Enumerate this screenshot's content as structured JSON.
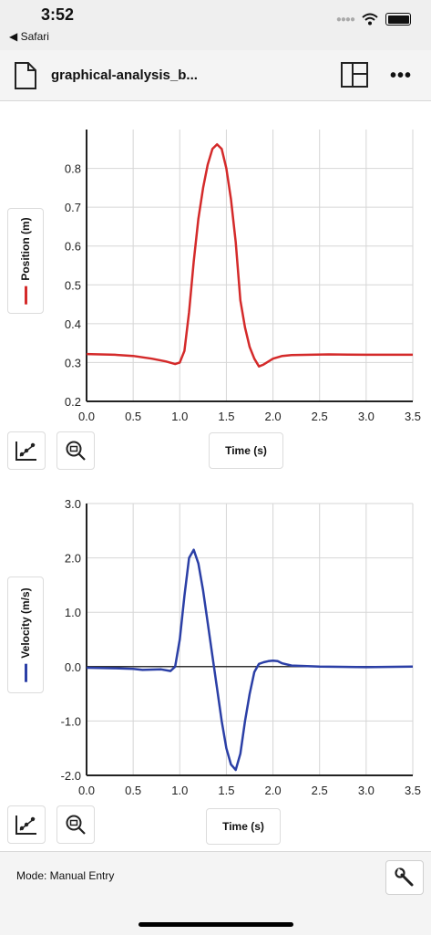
{
  "status": {
    "time": "3:52",
    "back_app": "◀ Safari"
  },
  "toolbar": {
    "title": "graphical-analysis_b...",
    "more": "•••"
  },
  "position_graph": {
    "ylabel": "Position (m)",
    "xlabel_button": "Time (s)",
    "color": "#d42a2a"
  },
  "velocity_graph": {
    "ylabel": "Velocity (m/s)",
    "xlabel_button": "Time (s)",
    "color": "#2b3fa6"
  },
  "footer": {
    "mode": "Mode: Manual Entry"
  },
  "chart_data": [
    {
      "type": "line",
      "xlabel": "Time (s)",
      "ylabel": "Position (m)",
      "xlim": [
        0,
        3.5
      ],
      "ylim": [
        0.2,
        0.9
      ],
      "xticks": [
        "0.0",
        "0.5",
        "1.0",
        "1.5",
        "2.0",
        "2.5",
        "3.0",
        "3.5"
      ],
      "yticks": [
        "0.2",
        "0.3",
        "0.4",
        "0.5",
        "0.6",
        "0.7",
        "0.8"
      ],
      "grid": true,
      "series": [
        {
          "x": [
            0,
            0.3,
            0.5,
            0.7,
            0.85,
            0.95,
            1.0,
            1.05,
            1.1,
            1.15,
            1.2,
            1.25,
            1.3,
            1.35,
            1.4,
            1.45,
            1.5,
            1.55,
            1.6,
            1.65,
            1.7,
            1.75,
            1.8,
            1.85,
            1.9,
            2.0,
            2.1,
            2.2,
            2.4,
            2.6,
            3.0,
            3.5
          ],
          "y": [
            0.322,
            0.32,
            0.317,
            0.31,
            0.303,
            0.296,
            0.3,
            0.33,
            0.43,
            0.56,
            0.67,
            0.75,
            0.81,
            0.85,
            0.862,
            0.85,
            0.8,
            0.72,
            0.61,
            0.46,
            0.39,
            0.34,
            0.31,
            0.29,
            0.295,
            0.31,
            0.317,
            0.319,
            0.32,
            0.321,
            0.32,
            0.32
          ]
        }
      ]
    },
    {
      "type": "line",
      "xlabel": "Time (s)",
      "ylabel": "Velocity (m/s)",
      "xlim": [
        0,
        3.5
      ],
      "ylim": [
        -2.0,
        3.0
      ],
      "xticks": [
        "0.0",
        "0.5",
        "1.0",
        "1.5",
        "2.0",
        "2.5",
        "3.0",
        "3.5"
      ],
      "yticks": [
        "-2.0",
        "-1.0",
        "0.0",
        "1.0",
        "2.0",
        "3.0"
      ],
      "grid": true,
      "zero_line": true,
      "series": [
        {
          "x": [
            0,
            0.3,
            0.5,
            0.6,
            0.8,
            0.9,
            0.95,
            1.0,
            1.05,
            1.1,
            1.15,
            1.2,
            1.25,
            1.3,
            1.35,
            1.4,
            1.45,
            1.5,
            1.55,
            1.6,
            1.65,
            1.7,
            1.75,
            1.8,
            1.85,
            1.9,
            1.95,
            2.0,
            2.05,
            2.1,
            2.2,
            2.5,
            3.0,
            3.5
          ],
          "y": [
            -0.02,
            -0.03,
            -0.04,
            -0.06,
            -0.05,
            -0.08,
            0.0,
            0.5,
            1.3,
            2.0,
            2.15,
            1.9,
            1.4,
            0.8,
            0.2,
            -0.4,
            -1.0,
            -1.5,
            -1.8,
            -1.9,
            -1.6,
            -1.0,
            -0.5,
            -0.1,
            0.05,
            0.08,
            0.1,
            0.11,
            0.1,
            0.06,
            0.02,
            0.0,
            -0.01,
            0.0
          ]
        }
      ]
    }
  ]
}
